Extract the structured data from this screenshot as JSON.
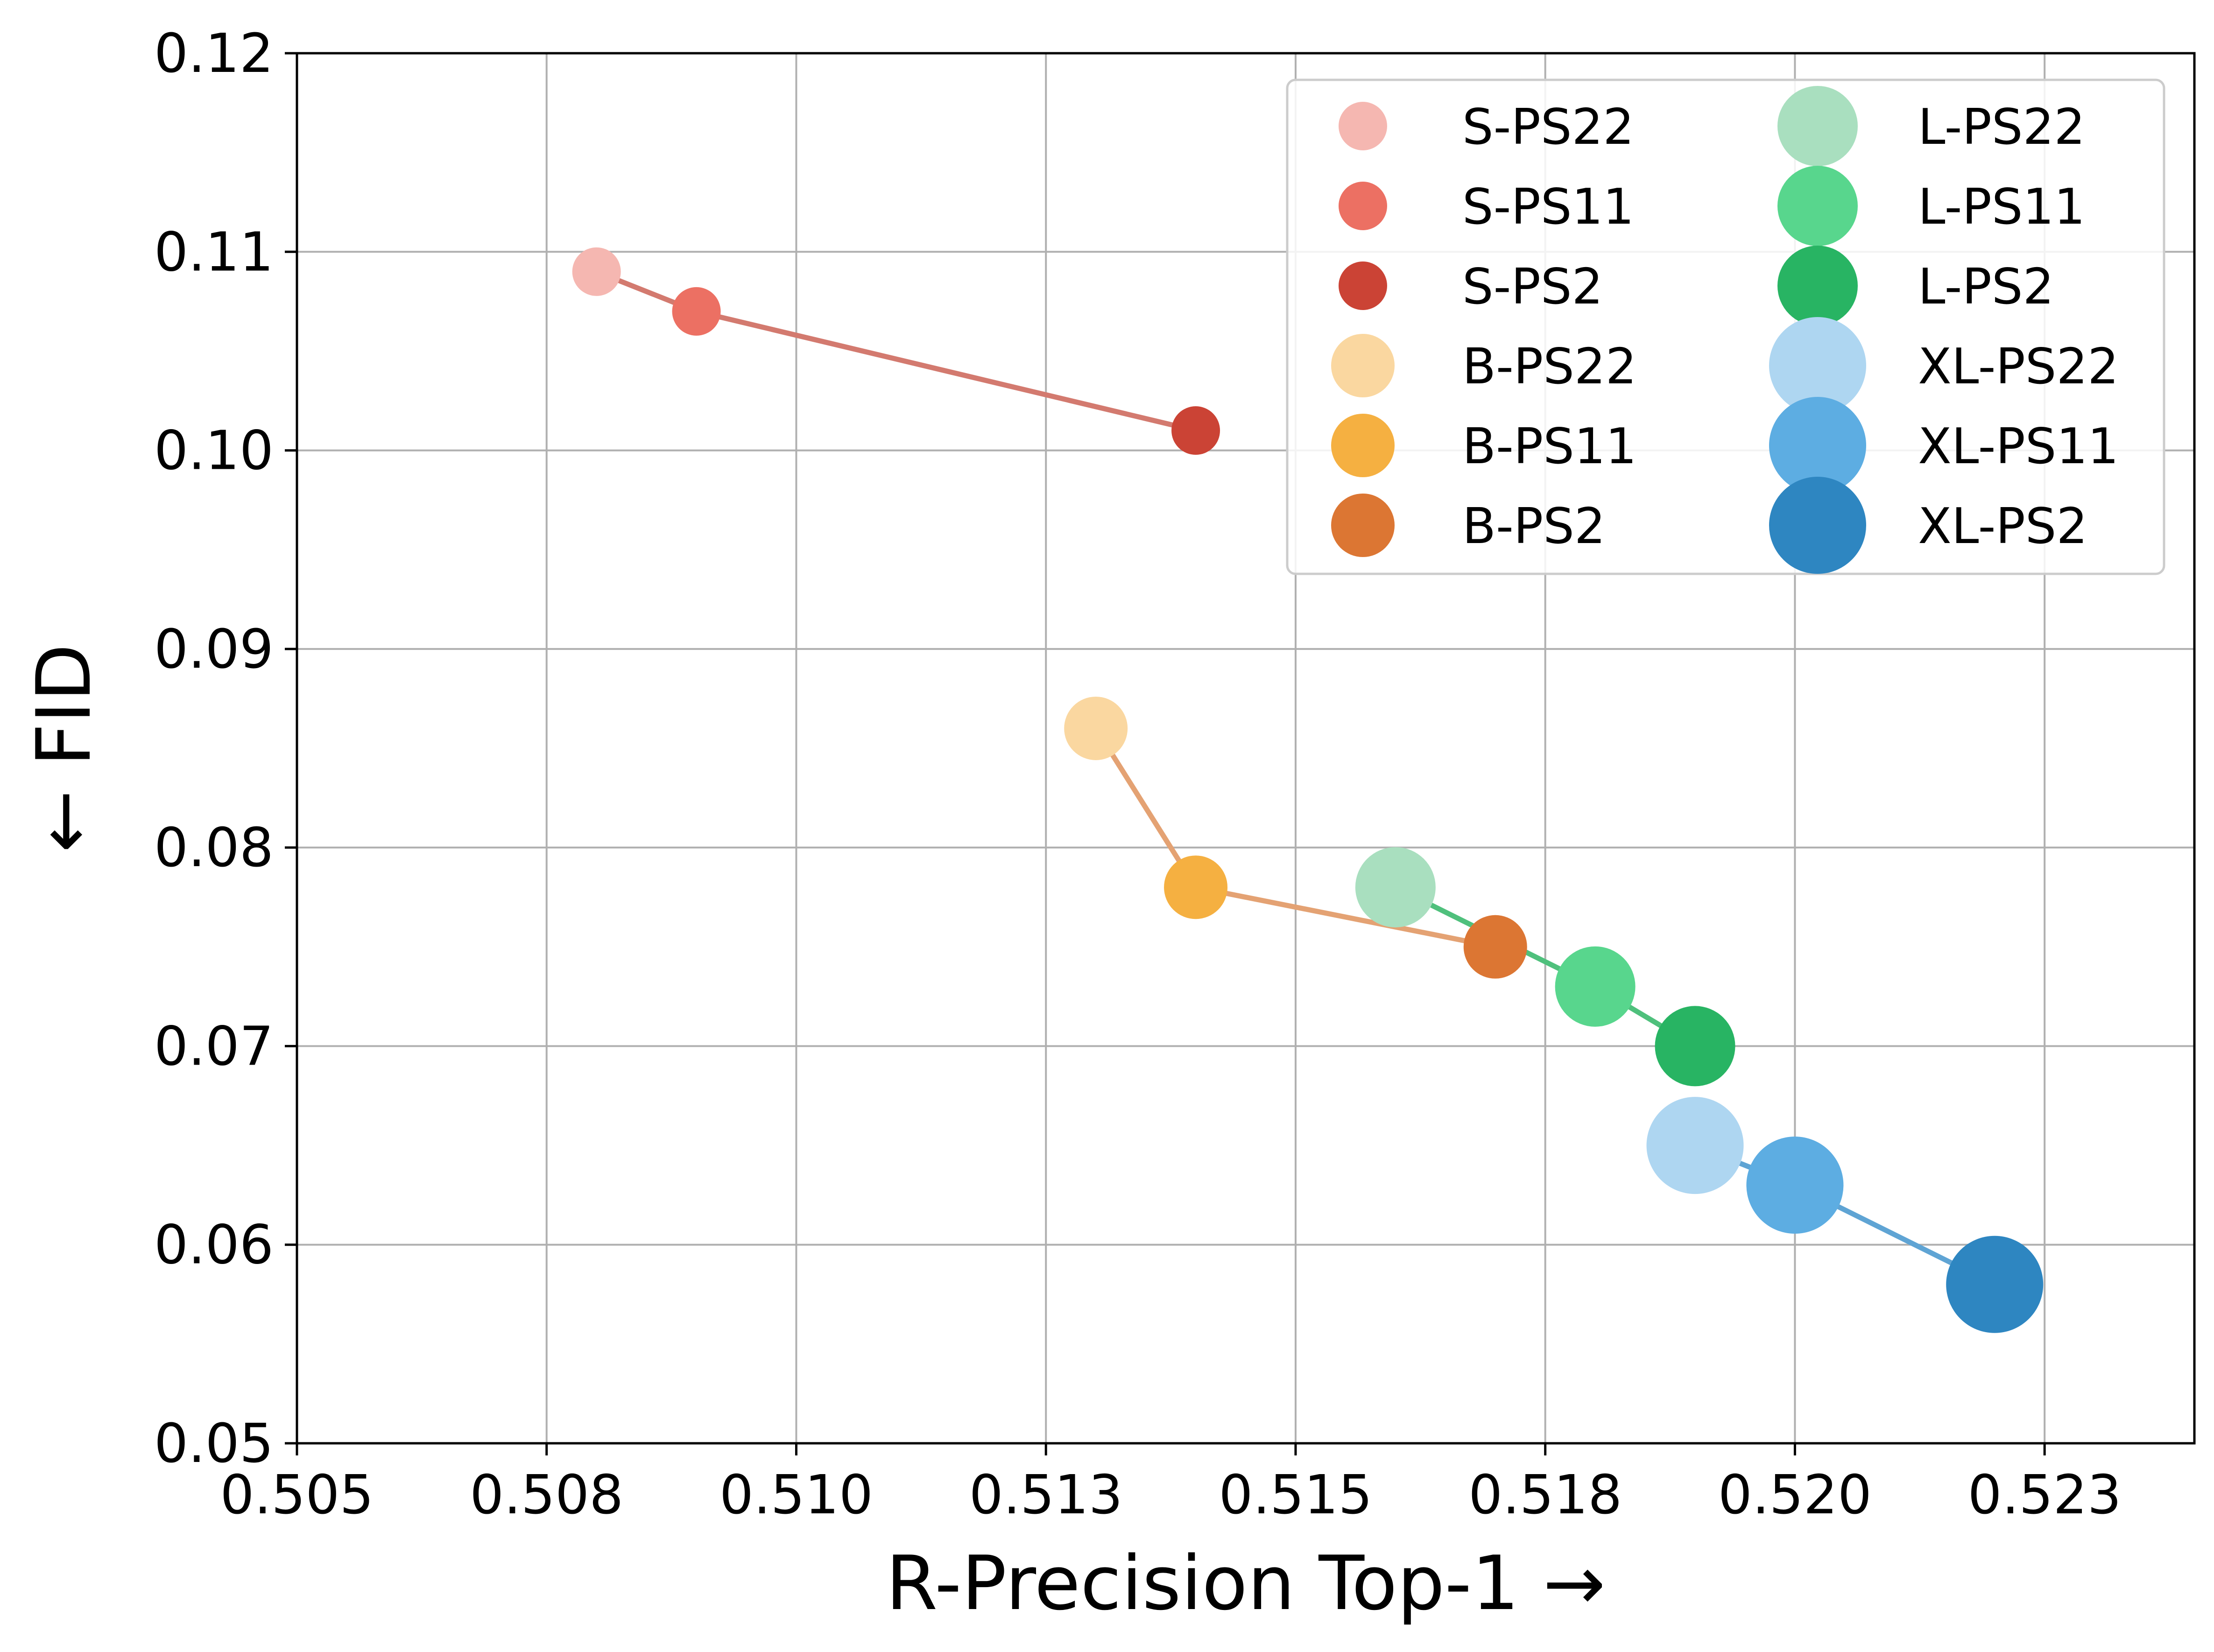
{
  "chart_data": {
    "type": "scatter",
    "xlabel": "R-Precision Top-1 →",
    "ylabel": "← FID",
    "xlim": [
      0.505,
      0.524
    ],
    "ylim": [
      0.05,
      0.12
    ],
    "x_ticks": [
      {
        "value": 0.505,
        "label": "0.505"
      },
      {
        "value": 0.5075,
        "label": "0.508"
      },
      {
        "value": 0.51,
        "label": "0.510"
      },
      {
        "value": 0.5125,
        "label": "0.513"
      },
      {
        "value": 0.515,
        "label": "0.515"
      },
      {
        "value": 0.5175,
        "label": "0.518"
      },
      {
        "value": 0.52,
        "label": "0.520"
      },
      {
        "value": 0.5225,
        "label": "0.523"
      }
    ],
    "y_ticks": [
      {
        "value": 0.05,
        "label": "0.05"
      },
      {
        "value": 0.06,
        "label": "0.06"
      },
      {
        "value": 0.07,
        "label": "0.07"
      },
      {
        "value": 0.08,
        "label": "0.08"
      },
      {
        "value": 0.09,
        "label": "0.09"
      },
      {
        "value": 0.1,
        "label": "0.10"
      },
      {
        "value": 0.11,
        "label": "0.11"
      },
      {
        "value": 0.12,
        "label": "0.12"
      }
    ],
    "grid": true,
    "legend_position": "top-right",
    "series": [
      {
        "name": "S-PS22",
        "model": "S",
        "color": "#f5b7b1",
        "x": 0.508,
        "y": 0.109
      },
      {
        "name": "S-PS11",
        "model": "S",
        "color": "#ec7063",
        "x": 0.509,
        "y": 0.107
      },
      {
        "name": "S-PS2",
        "model": "S",
        "color": "#cb4335",
        "x": 0.514,
        "y": 0.101
      },
      {
        "name": "B-PS22",
        "model": "B",
        "color": "#fad7a0",
        "x": 0.513,
        "y": 0.086
      },
      {
        "name": "B-PS11",
        "model": "B",
        "color": "#f5b041",
        "x": 0.514,
        "y": 0.078
      },
      {
        "name": "B-PS2",
        "model": "B",
        "color": "#dc7633",
        "x": 0.517,
        "y": 0.075
      },
      {
        "name": "L-PS22",
        "model": "L",
        "color": "#a9dfbf",
        "x": 0.516,
        "y": 0.078
      },
      {
        "name": "L-PS11",
        "model": "L",
        "color": "#58d68d",
        "x": 0.518,
        "y": 0.073
      },
      {
        "name": "L-PS2",
        "model": "L",
        "color": "#28b463",
        "x": 0.519,
        "y": 0.07
      },
      {
        "name": "XL-PS22",
        "model": "XL",
        "color": "#aed6f1",
        "x": 0.519,
        "y": 0.065
      },
      {
        "name": "XL-PS11",
        "model": "XL",
        "color": "#5dade2",
        "x": 0.52,
        "y": 0.063
      },
      {
        "name": "XL-PS2",
        "model": "XL",
        "color": "#2e86c1",
        "x": 0.522,
        "y": 0.058
      }
    ],
    "lines": [
      {
        "model": "S",
        "color": "#d37a6f"
      },
      {
        "model": "B",
        "color": "#e4a273"
      },
      {
        "model": "L",
        "color": "#4fc07c"
      },
      {
        "model": "XL",
        "color": "#5fa4d4"
      }
    ]
  }
}
